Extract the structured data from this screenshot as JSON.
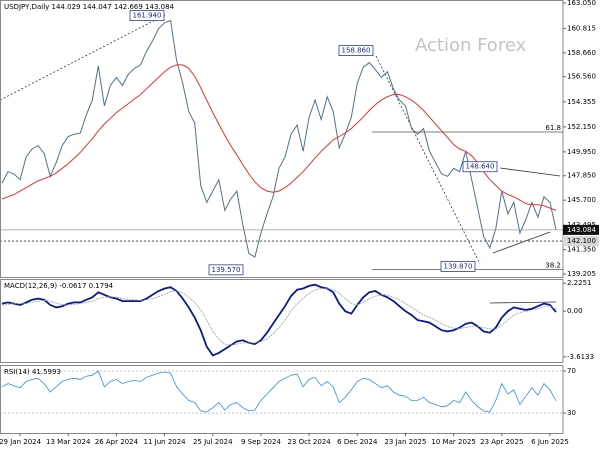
{
  "chart_data": [
    {
      "type": "line",
      "title": "USDJPY,Daily 144.029 144.047 142.669 143.084",
      "watermark": "Action Forex",
      "categories": [
        null,
        null,
        null,
        "29 Jan 2024",
        null,
        null,
        null,
        null,
        null,
        null,
        null,
        "13 Mar 2024",
        null,
        null,
        null,
        null,
        null,
        null,
        null,
        "26 Apr 2024",
        null,
        null,
        null,
        null,
        null,
        null,
        null,
        "11 Jun 2024",
        null,
        null,
        null,
        null,
        null,
        null,
        null,
        "25 Jul 2024",
        null,
        null,
        null,
        null,
        null,
        null,
        null,
        "9 Sep 2024",
        null,
        null,
        null,
        null,
        null,
        null,
        null,
        "23 Oct 2024",
        null,
        null,
        null,
        null,
        null,
        null,
        null,
        "6 Dec 2024",
        null,
        null,
        null,
        null,
        null,
        null,
        null,
        "23 Jan 2025",
        null,
        null,
        null,
        null,
        null,
        null,
        null,
        "10 Mar 2025",
        null,
        null,
        null,
        null,
        null,
        null,
        null,
        "23 Apr 2025",
        null,
        null,
        null,
        null,
        null,
        null,
        null,
        "6 Jun 2025",
        null
      ],
      "series": [
        {
          "color": "#4f7189",
          "values": [
            147.2,
            148.2,
            148.0,
            147.5,
            149.5,
            150.2,
            150.5,
            149.8,
            147.8,
            149.0,
            150.5,
            151.3,
            151.5,
            151.6,
            153.2,
            154.5,
            157.5,
            154.0,
            155.8,
            156.5,
            155.8,
            156.8,
            157.3,
            157.6,
            158.8,
            159.7,
            160.8,
            161.3,
            161.5,
            158.0,
            156.0,
            153.5,
            152.5,
            147.0,
            145.5,
            146.5,
            147.5,
            144.8,
            145.8,
            146.5,
            143.5,
            141.0,
            140.7,
            142.8,
            144.5,
            146.0,
            148.5,
            149.5,
            151.5,
            152.3,
            150.0,
            153.0,
            154.5,
            152.8,
            154.8,
            153.5,
            150.3,
            151.5,
            153.0,
            156.0,
            157.4,
            157.8,
            157.2,
            156.5,
            157.0,
            155.5,
            154.5,
            154.0,
            152.0,
            151.5,
            152.0,
            150.0,
            149.0,
            148.0,
            147.8,
            148.5,
            148.2,
            150.0,
            147.5,
            145.0,
            142.5,
            141.5,
            143.2,
            146.5,
            144.5,
            145.5,
            142.8,
            144.0,
            145.5,
            144.2,
            146.0,
            145.5,
            143.1
          ]
        },
        {
          "color": "#e8322f",
          "values": [
            145.8,
            146.0,
            146.2,
            146.5,
            146.8,
            147.1,
            147.4,
            147.6,
            147.8,
            148.1,
            148.5,
            148.9,
            149.4,
            149.9,
            150.5,
            151.1,
            151.8,
            152.4,
            152.9,
            153.4,
            153.8,
            154.2,
            154.6,
            155.0,
            155.5,
            156.0,
            156.5,
            157.0,
            157.4,
            157.6,
            157.6,
            157.3,
            156.6,
            155.6,
            154.5,
            153.4,
            152.4,
            151.4,
            150.5,
            149.7,
            148.8,
            148.0,
            147.3,
            146.8,
            146.5,
            146.4,
            146.5,
            146.8,
            147.2,
            147.7,
            148.2,
            148.8,
            149.4,
            150.0,
            150.5,
            151.0,
            151.3,
            151.6,
            152.0,
            152.5,
            153.0,
            153.6,
            154.1,
            154.5,
            154.8,
            155.0,
            155.0,
            154.8,
            154.5,
            154.1,
            153.6,
            153.0,
            152.4,
            151.8,
            151.2,
            150.6,
            150.2,
            150.0,
            149.6,
            149.0,
            148.2,
            147.5,
            147.0,
            146.5,
            146.2,
            146.0,
            145.7,
            145.4,
            145.3,
            145.3,
            145.2,
            145.0,
            144.8
          ]
        }
      ],
      "ylim": [
        138.94,
        163.31
      ],
      "yticks": [
        {
          "value": 163.05,
          "label": "163.050"
        },
        {
          "value": 160.815,
          "label": "160.815"
        },
        {
          "value": 158.66,
          "label": "158.660"
        },
        {
          "value": 156.56,
          "label": "156.560"
        },
        {
          "value": 154.355,
          "label": "154.355"
        },
        {
          "value": 152.15,
          "label": "152.150"
        },
        {
          "value": 149.95,
          "label": "149.950"
        },
        {
          "value": 147.85,
          "label": "147.850"
        },
        {
          "value": 145.7,
          "label": "145.700"
        },
        {
          "value": 143.495,
          "label": "143.495"
        },
        {
          "value": 141.35,
          "label": "141.350"
        },
        {
          "value": 139.205,
          "label": "139.205"
        }
      ],
      "annotations": [
        {
          "label": "161.940",
          "value": 161.94
        },
        {
          "label": "158.860",
          "value": 158.86
        },
        {
          "label": "148.640",
          "value": 148.64
        },
        {
          "label": "139.570",
          "value": 139.57
        },
        {
          "label": "139.870",
          "value": 139.87
        }
      ],
      "levels": [
        {
          "label": "143.084",
          "value": 143.084
        },
        {
          "label": "142.100",
          "value": 142.1
        }
      ],
      "fibo": [
        {
          "label": "61.8",
          "value": 151.7
        },
        {
          "label": "38.2",
          "value": 139.6
        }
      ]
    },
    {
      "type": "line",
      "title": "MACD(12,26,9) -0.0617 0.1794",
      "series": [
        {
          "color": "#0a1a8c",
          "values": [
            0.6,
            0.7,
            0.6,
            0.5,
            0.7,
            0.9,
            1.0,
            0.9,
            0.5,
            0.3,
            0.4,
            0.6,
            0.7,
            0.7,
            0.9,
            1.1,
            1.5,
            1.3,
            1.1,
            1.0,
            0.8,
            0.8,
            0.8,
            0.8,
            1.0,
            1.3,
            1.6,
            1.8,
            1.9,
            1.6,
            1.0,
            0.3,
            -0.5,
            -1.5,
            -2.8,
            -3.5,
            -3.3,
            -3.0,
            -2.7,
            -2.4,
            -2.3,
            -2.5,
            -2.6,
            -2.3,
            -1.7,
            -1.0,
            -0.3,
            0.4,
            1.2,
            1.7,
            1.8,
            2.0,
            2.1,
            1.9,
            1.8,
            1.5,
            0.6,
            0.0,
            -0.2,
            0.5,
            1.1,
            1.5,
            1.6,
            1.3,
            1.1,
            0.8,
            0.4,
            0.0,
            -0.3,
            -0.7,
            -0.8,
            -0.9,
            -1.2,
            -1.5,
            -1.6,
            -1.5,
            -1.3,
            -1.0,
            -0.9,
            -1.2,
            -1.6,
            -1.7,
            -1.3,
            -0.5,
            0.0,
            0.3,
            0.2,
            0.1,
            0.2,
            0.4,
            0.6,
            0.5,
            -0.0617
          ]
        },
        {
          "color": "#9a9a9a",
          "values": [
            0.5,
            0.55,
            0.6,
            0.6,
            0.6,
            0.7,
            0.8,
            0.85,
            0.8,
            0.65,
            0.5,
            0.5,
            0.55,
            0.6,
            0.7,
            0.8,
            1.0,
            1.1,
            1.15,
            1.1,
            1.0,
            0.95,
            0.9,
            0.85,
            0.9,
            1.0,
            1.15,
            1.35,
            1.55,
            1.6,
            1.45,
            1.1,
            0.7,
            0.1,
            -0.7,
            -1.6,
            -2.2,
            -2.6,
            -2.7,
            -2.6,
            -2.5,
            -2.5,
            -2.5,
            -2.4,
            -2.2,
            -1.8,
            -1.3,
            -0.7,
            0.0,
            0.6,
            1.0,
            1.4,
            1.7,
            1.8,
            1.8,
            1.7,
            1.4,
            1.0,
            0.6,
            0.5,
            0.7,
            1.0,
            1.2,
            1.3,
            1.3,
            1.1,
            0.9,
            0.6,
            0.3,
            0.0,
            -0.3,
            -0.5,
            -0.7,
            -1.0,
            -1.2,
            -1.35,
            -1.35,
            -1.3,
            -1.2,
            -1.2,
            -1.3,
            -1.4,
            -1.4,
            -1.1,
            -0.7,
            -0.3,
            -0.1,
            0.0,
            0.1,
            0.2,
            0.35,
            0.4,
            0.1794
          ]
        }
      ],
      "ylim": [
        -4.1,
        2.55
      ],
      "yticks": [
        2.2251,
        {
          "value": 0,
          "label": "0.00"
        },
        -3.6133
      ]
    },
    {
      "type": "line",
      "title": "RSI(14) 41.5993",
      "series": [
        {
          "color": "#2f8fe6",
          "values": [
            55,
            58,
            56,
            54,
            60,
            62,
            63,
            58,
            50,
            55,
            60,
            62,
            63,
            62,
            65,
            66,
            70,
            55,
            60,
            62,
            58,
            60,
            61,
            60,
            64,
            66,
            68,
            69,
            68,
            55,
            48,
            42,
            40,
            32,
            31,
            35,
            40,
            33,
            38,
            40,
            35,
            32,
            33,
            42,
            48,
            54,
            60,
            63,
            66,
            67,
            55,
            62,
            64,
            56,
            60,
            55,
            40,
            45,
            52,
            60,
            63,
            62,
            58,
            54,
            56,
            50,
            47,
            46,
            42,
            42,
            45,
            40,
            38,
            36,
            37,
            42,
            40,
            50,
            42,
            36,
            32,
            31,
            42,
            58,
            48,
            52,
            38,
            46,
            54,
            47,
            58,
            52,
            41.6
          ]
        }
      ],
      "ylim": [
        11,
        75.7
      ],
      "yticks": [
        70,
        30
      ],
      "grid": true
    }
  ]
}
